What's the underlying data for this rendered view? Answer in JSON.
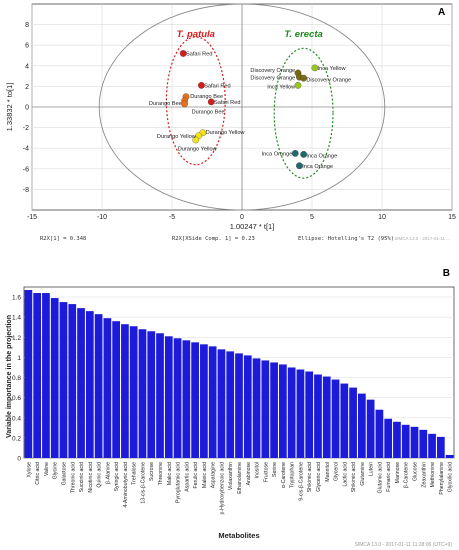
{
  "chart_data": [
    {
      "type": "scatter",
      "panel_label": "A",
      "xlabel": "1.00247 * t[1]",
      "ylabel": "1.33832 * to[1]",
      "xlim": [
        -15,
        15
      ],
      "ylim": [
        -10,
        10
      ],
      "xticks": [
        -15,
        -10,
        -5,
        0,
        5,
        10,
        15
      ],
      "yticks": [
        -8,
        -6,
        -4,
        -2,
        0,
        2,
        4,
        6,
        8
      ],
      "grid": true,
      "group_labels": [
        {
          "text": "T. patula",
          "color": "#d21e1e"
        },
        {
          "text": "T. erecta",
          "color": "#1f8a1f"
        }
      ],
      "footer": {
        "r2x": "R2X[1] = 0.348",
        "r2x_side": "R2X[XSide Comp. 1] = 0.23",
        "ellipse": "Ellipse: Hotelling's T2 (95%)",
        "watermark": "SIMCA 13.0 - 2017-01-11 ..."
      },
      "points": [
        {
          "label": "Safari Red",
          "x": -4.2,
          "y": 5.2,
          "color": "#d81b1b"
        },
        {
          "label": "Safari Red",
          "x": -2.9,
          "y": 2.1,
          "color": "#d81b1b"
        },
        {
          "label": "Safari Red",
          "x": -2.2,
          "y": 0.5,
          "color": "#d81b1b"
        },
        {
          "label": "Durango Bee",
          "x": -4.0,
          "y": 1.0,
          "color": "#e8731a"
        },
        {
          "label": "Durango Bee",
          "x": -4.1,
          "y": 0.6,
          "color": "#e8731a"
        },
        {
          "label": "Durango Bee",
          "x": -4.1,
          "y": 0.3,
          "color": "#e8731a"
        },
        {
          "label": "Durango Yellow",
          "x": -2.8,
          "y": -2.5,
          "color": "#f5e31a"
        },
        {
          "label": "Durango Yellow",
          "x": -3.1,
          "y": -2.8,
          "color": "#f5e31a"
        },
        {
          "label": "Durango Yellow",
          "x": -3.3,
          "y": -3.2,
          "color": "#f5e31a"
        },
        {
          "label": "Discovery Orange",
          "x": 4.0,
          "y": 3.3,
          "color": "#7a6a10"
        },
        {
          "label": "Discovery Orange",
          "x": 4.1,
          "y": 2.9,
          "color": "#7a6a10"
        },
        {
          "label": "Discovery Orange",
          "x": 4.4,
          "y": 2.8,
          "color": "#7a6a10"
        },
        {
          "label": "Inca Yellow",
          "x": 5.2,
          "y": 3.8,
          "color": "#9ac41e"
        },
        {
          "label": "Inca Yellow",
          "x": 4.0,
          "y": 2.1,
          "color": "#9ac41e"
        },
        {
          "label": "Inca Orange",
          "x": 3.8,
          "y": -4.5,
          "color": "#1e6b6b"
        },
        {
          "label": "Inca Orange",
          "x": 4.4,
          "y": -4.6,
          "color": "#1e6b6b"
        },
        {
          "label": "Inca Orange",
          "x": 4.1,
          "y": -5.7,
          "color": "#1e6b6b"
        }
      ],
      "text_labels": [
        {
          "text": "Safari Red",
          "x": -4.0,
          "y": 5.2,
          "anchor": "start"
        },
        {
          "text": "Safari Red",
          "x": -2.7,
          "y": 2.1,
          "anchor": "start"
        },
        {
          "text": "Safari Red",
          "x": -2.0,
          "y": 0.5,
          "anchor": "start"
        },
        {
          "text": "Durango Bee",
          "x": -3.7,
          "y": 1.1,
          "anchor": "start"
        },
        {
          "text": "Durango Bee",
          "x": -4.3,
          "y": 0.4,
          "anchor": "end"
        },
        {
          "text": "Durango Bee",
          "x": -3.6,
          "y": -0.4,
          "anchor": "start"
        },
        {
          "text": "Durango Yellow",
          "x": -2.6,
          "y": -2.4,
          "anchor": "start"
        },
        {
          "text": "Durango Yellow",
          "x": -3.3,
          "y": -2.8,
          "anchor": "end"
        },
        {
          "text": "Durango Yellow",
          "x": -3.2,
          "y": -4.0,
          "anchor": "middle"
        },
        {
          "text": "Discovery Orange",
          "x": 3.8,
          "y": 3.6,
          "anchor": "end"
        },
        {
          "text": "Discovery Orange",
          "x": 3.8,
          "y": 2.9,
          "anchor": "end"
        },
        {
          "text": "Discovery Orange",
          "x": 4.6,
          "y": 2.7,
          "anchor": "start"
        },
        {
          "text": "Inca Yellow",
          "x": 5.4,
          "y": 3.8,
          "anchor": "start"
        },
        {
          "text": "Inca Yellow",
          "x": 3.8,
          "y": 2.0,
          "anchor": "end"
        },
        {
          "text": "Inca Orange",
          "x": 3.6,
          "y": -4.5,
          "anchor": "end"
        },
        {
          "text": "Inca Orange",
          "x": 4.6,
          "y": -4.7,
          "anchor": "start"
        },
        {
          "text": "Inca Orange",
          "x": 4.3,
          "y": -5.7,
          "anchor": "start"
        }
      ]
    },
    {
      "type": "bar",
      "panel_label": "B",
      "xlabel": "Metabolites",
      "ylabel": "Variable importance in the projection",
      "ylim": [
        0,
        1.7
      ],
      "yticks": [
        0,
        0.2,
        0.4,
        0.6,
        0.8,
        1,
        1.2,
        1.4,
        1.6
      ],
      "bar_color": "#1b1bd9",
      "footer": "SIMCA 13.0 - 2017-01-11 11:28:06 (UTC+9)",
      "categories": [
        "Xylose",
        "Citric acid",
        "Valine",
        "Glycine",
        "Galactose",
        "Threonic acid",
        "Succinic acid",
        "Nicotinic acid",
        "Quinic acid",
        "β-Alanine",
        "Syringic acid",
        "4-Aminobutyric acid",
        "Trehalose",
        "13-cis-β-Carotene",
        "Sucrose",
        "Threonine",
        "Malic acid",
        "Pyroglutamic acid",
        "Aspartic acid",
        "Ferulic acid",
        "Maleic acid",
        "Asparagine",
        "p-Hydroxybenzoic acid",
        "Violaxanthin",
        "Ethanolamine",
        "Arabinose",
        "Inositol",
        "Fructose",
        "Serine",
        "α-Carotene",
        "Tryptophan",
        "9-cis-β-Carotene",
        "Shikimic acid",
        "Glyceric acid",
        "Mannitol",
        "Glycerol",
        "Lactic acid",
        "Shikimic acid",
        "Glutamine",
        "Lutein",
        "Glutamic acid",
        "Fumaric acid",
        "Mannose",
        "β-Carotene",
        "Glucose",
        "Zeaxanthin",
        "Methionine",
        "Phenylalanine",
        "Glyoxilic acid"
      ],
      "values": [
        1.67,
        1.64,
        1.64,
        1.59,
        1.55,
        1.53,
        1.49,
        1.46,
        1.43,
        1.39,
        1.36,
        1.33,
        1.31,
        1.28,
        1.26,
        1.24,
        1.21,
        1.19,
        1.17,
        1.15,
        1.13,
        1.11,
        1.08,
        1.06,
        1.04,
        1.02,
        0.99,
        0.97,
        0.95,
        0.93,
        0.9,
        0.88,
        0.86,
        0.83,
        0.81,
        0.78,
        0.74,
        0.7,
        0.64,
        0.58,
        0.48,
        0.39,
        0.36,
        0.33,
        0.31,
        0.28,
        0.24,
        0.21,
        0.03
      ]
    }
  ]
}
